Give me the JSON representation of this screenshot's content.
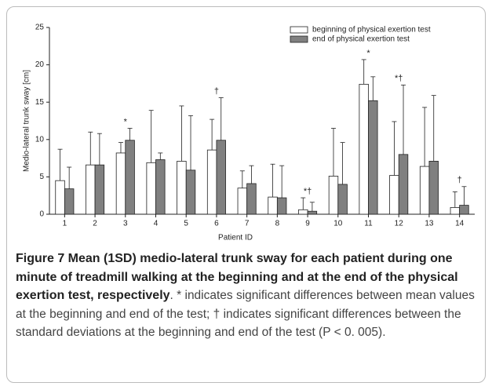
{
  "chart_data": {
    "type": "bar",
    "categories": [
      "1",
      "2",
      "3",
      "4",
      "5",
      "6",
      "7",
      "8",
      "9",
      "10",
      "11",
      "12",
      "13",
      "14"
    ],
    "series": [
      {
        "name": "beginning of physical exertion test",
        "color": "#ffffff",
        "values": [
          4.5,
          6.6,
          8.2,
          6.9,
          7.1,
          8.6,
          3.5,
          2.3,
          0.6,
          5.1,
          17.4,
          5.2,
          6.4,
          0.9
        ],
        "errors": [
          4.2,
          4.4,
          1.4,
          7.0,
          7.4,
          4.1,
          2.3,
          4.4,
          1.6,
          6.4,
          3.3,
          7.2,
          7.9,
          2.1
        ]
      },
      {
        "name": "end of physical exertion test",
        "color": "#808080",
        "values": [
          3.4,
          6.6,
          9.9,
          7.3,
          5.9,
          9.9,
          4.1,
          2.2,
          0.4,
          4.0,
          15.2,
          8.0,
          7.1,
          1.2
        ],
        "errors": [
          2.9,
          4.2,
          1.6,
          0.9,
          7.3,
          5.7,
          2.4,
          4.3,
          1.2,
          5.6,
          3.2,
          9.3,
          8.8,
          2.5
        ]
      }
    ],
    "annotations": [
      {
        "text": "*",
        "category": "3"
      },
      {
        "text": "†",
        "category": "6"
      },
      {
        "text": "*†",
        "category": "9"
      },
      {
        "text": "*",
        "category": "11"
      },
      {
        "text": "*†",
        "category": "12"
      },
      {
        "text": "†",
        "category": "14"
      }
    ],
    "x_label": "Patient ID",
    "y_label": "Medio-lateral trunk sway [cm]",
    "ylim": [
      0,
      25
    ],
    "yticks": [
      0,
      5,
      10,
      15,
      20,
      25
    ],
    "legend": "upper right"
  },
  "caption": {
    "title": "Figure 7 Mean (1SD) medio-lateral trunk sway for each patient during one minute of treadmill walking at the beginning and at the end of the physical exertion test, respectively",
    "text": ". * indicates significant differences between mean values at the beginning and end of the test; † indicates significant differences between the standard deviations at the beginning and end of the test (P < 0. 005)."
  }
}
